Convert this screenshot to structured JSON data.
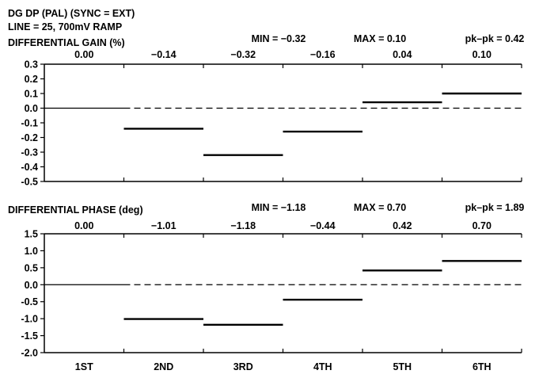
{
  "header": {
    "line1": "DG DP (PAL) (SYNC = EXT)",
    "line2": "LINE = 25, 700mV RAMP"
  },
  "chart_data": [
    {
      "type": "step",
      "title": "DIFFERENTIAL GAIN (%)",
      "categories": [
        "1ST",
        "2ND",
        "3RD",
        "4TH",
        "5TH",
        "6TH"
      ],
      "values": [
        0.0,
        -0.14,
        -0.32,
        -0.16,
        0.04,
        0.1
      ],
      "value_labels": [
        "0.00",
        "−0.14",
        "−0.32",
        "−0.16",
        "0.04",
        "0.10"
      ],
      "stats": {
        "min": "MIN = −0.32",
        "max": "MAX = 0.10",
        "pkpk": "pk–pk = 0.42"
      },
      "ylim": [
        -0.5,
        0.3
      ],
      "yticks": [
        0.3,
        0.2,
        0.1,
        0.0,
        -0.1,
        -0.2,
        -0.3,
        -0.4,
        -0.5
      ],
      "ytick_labels": [
        "0.3",
        "0.2",
        "0.1",
        "0.0",
        "-0.1",
        "-0.2",
        "-0.3",
        "-0.4",
        "-0.5"
      ],
      "zero_line": "dashed"
    },
    {
      "type": "step",
      "title": "DIFFERENTIAL PHASE (deg)",
      "categories": [
        "1ST",
        "2ND",
        "3RD",
        "4TH",
        "5TH",
        "6TH"
      ],
      "values": [
        0.0,
        -1.01,
        -1.18,
        -0.44,
        0.42,
        0.7
      ],
      "value_labels": [
        "0.00",
        "−1.01",
        "−1.18",
        "−0.44",
        "0.42",
        "0.70"
      ],
      "stats": {
        "min": "MIN = −1.18",
        "max": "MAX = 0.70",
        "pkpk": "pk–pk = 1.89"
      },
      "ylim": [
        -2.0,
        1.5
      ],
      "yticks": [
        1.5,
        1.0,
        0.5,
        0.0,
        -0.5,
        -1.0,
        -1.5,
        -2.0
      ],
      "ytick_labels": [
        "1.5",
        "1.0",
        "0.5",
        "0.0",
        "-0.5",
        "-1.0",
        "-1.5",
        "-2.0"
      ],
      "zero_line": "dashed"
    }
  ]
}
